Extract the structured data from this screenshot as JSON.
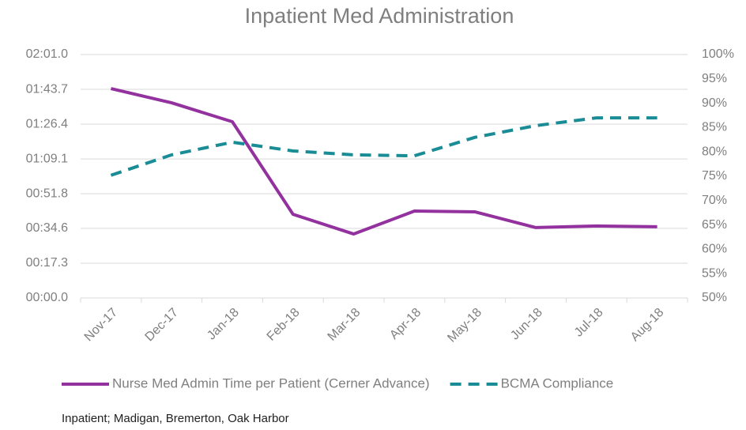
{
  "chart_data": {
    "type": "line",
    "title": "Inpatient Med Administration",
    "categories": [
      "Nov-17",
      "Dec-17",
      "Jan-18",
      "Feb-18",
      "Mar-18",
      "Apr-18",
      "May-18",
      "Jun-18",
      "Jul-18",
      "Aug-18"
    ],
    "series": [
      {
        "name": "Nurse Med Admin Time per Patient (Cerner Advance)",
        "color": "#93329e",
        "dash": false,
        "values": [
          104.1,
          97.0,
          87.6,
          41.6,
          31.8,
          43.2,
          42.8,
          35.0,
          35.8,
          35.4
        ]
      },
      {
        "name": "BCMA Compliance",
        "color": "#1a8c96",
        "dash": true,
        "axis": "y2",
        "values": [
          75.2,
          79.4,
          82.0,
          80.2,
          79.4,
          79.2,
          83.0,
          85.4,
          87.0,
          87.0
        ]
      }
    ],
    "ylim": [
      0,
      121
    ],
    "yticks": [
      {
        "value": 0,
        "label": "00:00.0"
      },
      {
        "value": 17.3,
        "label": "00:17.3"
      },
      {
        "value": 34.6,
        "label": "00:34.6"
      },
      {
        "value": 51.8,
        "label": "00:51.8"
      },
      {
        "value": 69.1,
        "label": "01:09.1"
      },
      {
        "value": 86.4,
        "label": "01:26.4"
      },
      {
        "value": 103.7,
        "label": "01:43.7"
      },
      {
        "value": 121,
        "label": "02:01.0"
      }
    ],
    "y2lim": [
      50,
      100
    ],
    "y2ticks": [
      {
        "value": 50,
        "label": "50%"
      },
      {
        "value": 55,
        "label": "55%"
      },
      {
        "value": 60,
        "label": "60%"
      },
      {
        "value": 65,
        "label": "65%"
      },
      {
        "value": 70,
        "label": "70%"
      },
      {
        "value": 75,
        "label": "75%"
      },
      {
        "value": 80,
        "label": "80%"
      },
      {
        "value": 85,
        "label": "85%"
      },
      {
        "value": 90,
        "label": "90%"
      },
      {
        "value": 95,
        "label": "95%"
      },
      {
        "value": 100,
        "label": "100%"
      }
    ],
    "grid": true,
    "legend": "bottom",
    "note": "Inpatient; Madigan, Bremerton, Oak Harbor"
  }
}
